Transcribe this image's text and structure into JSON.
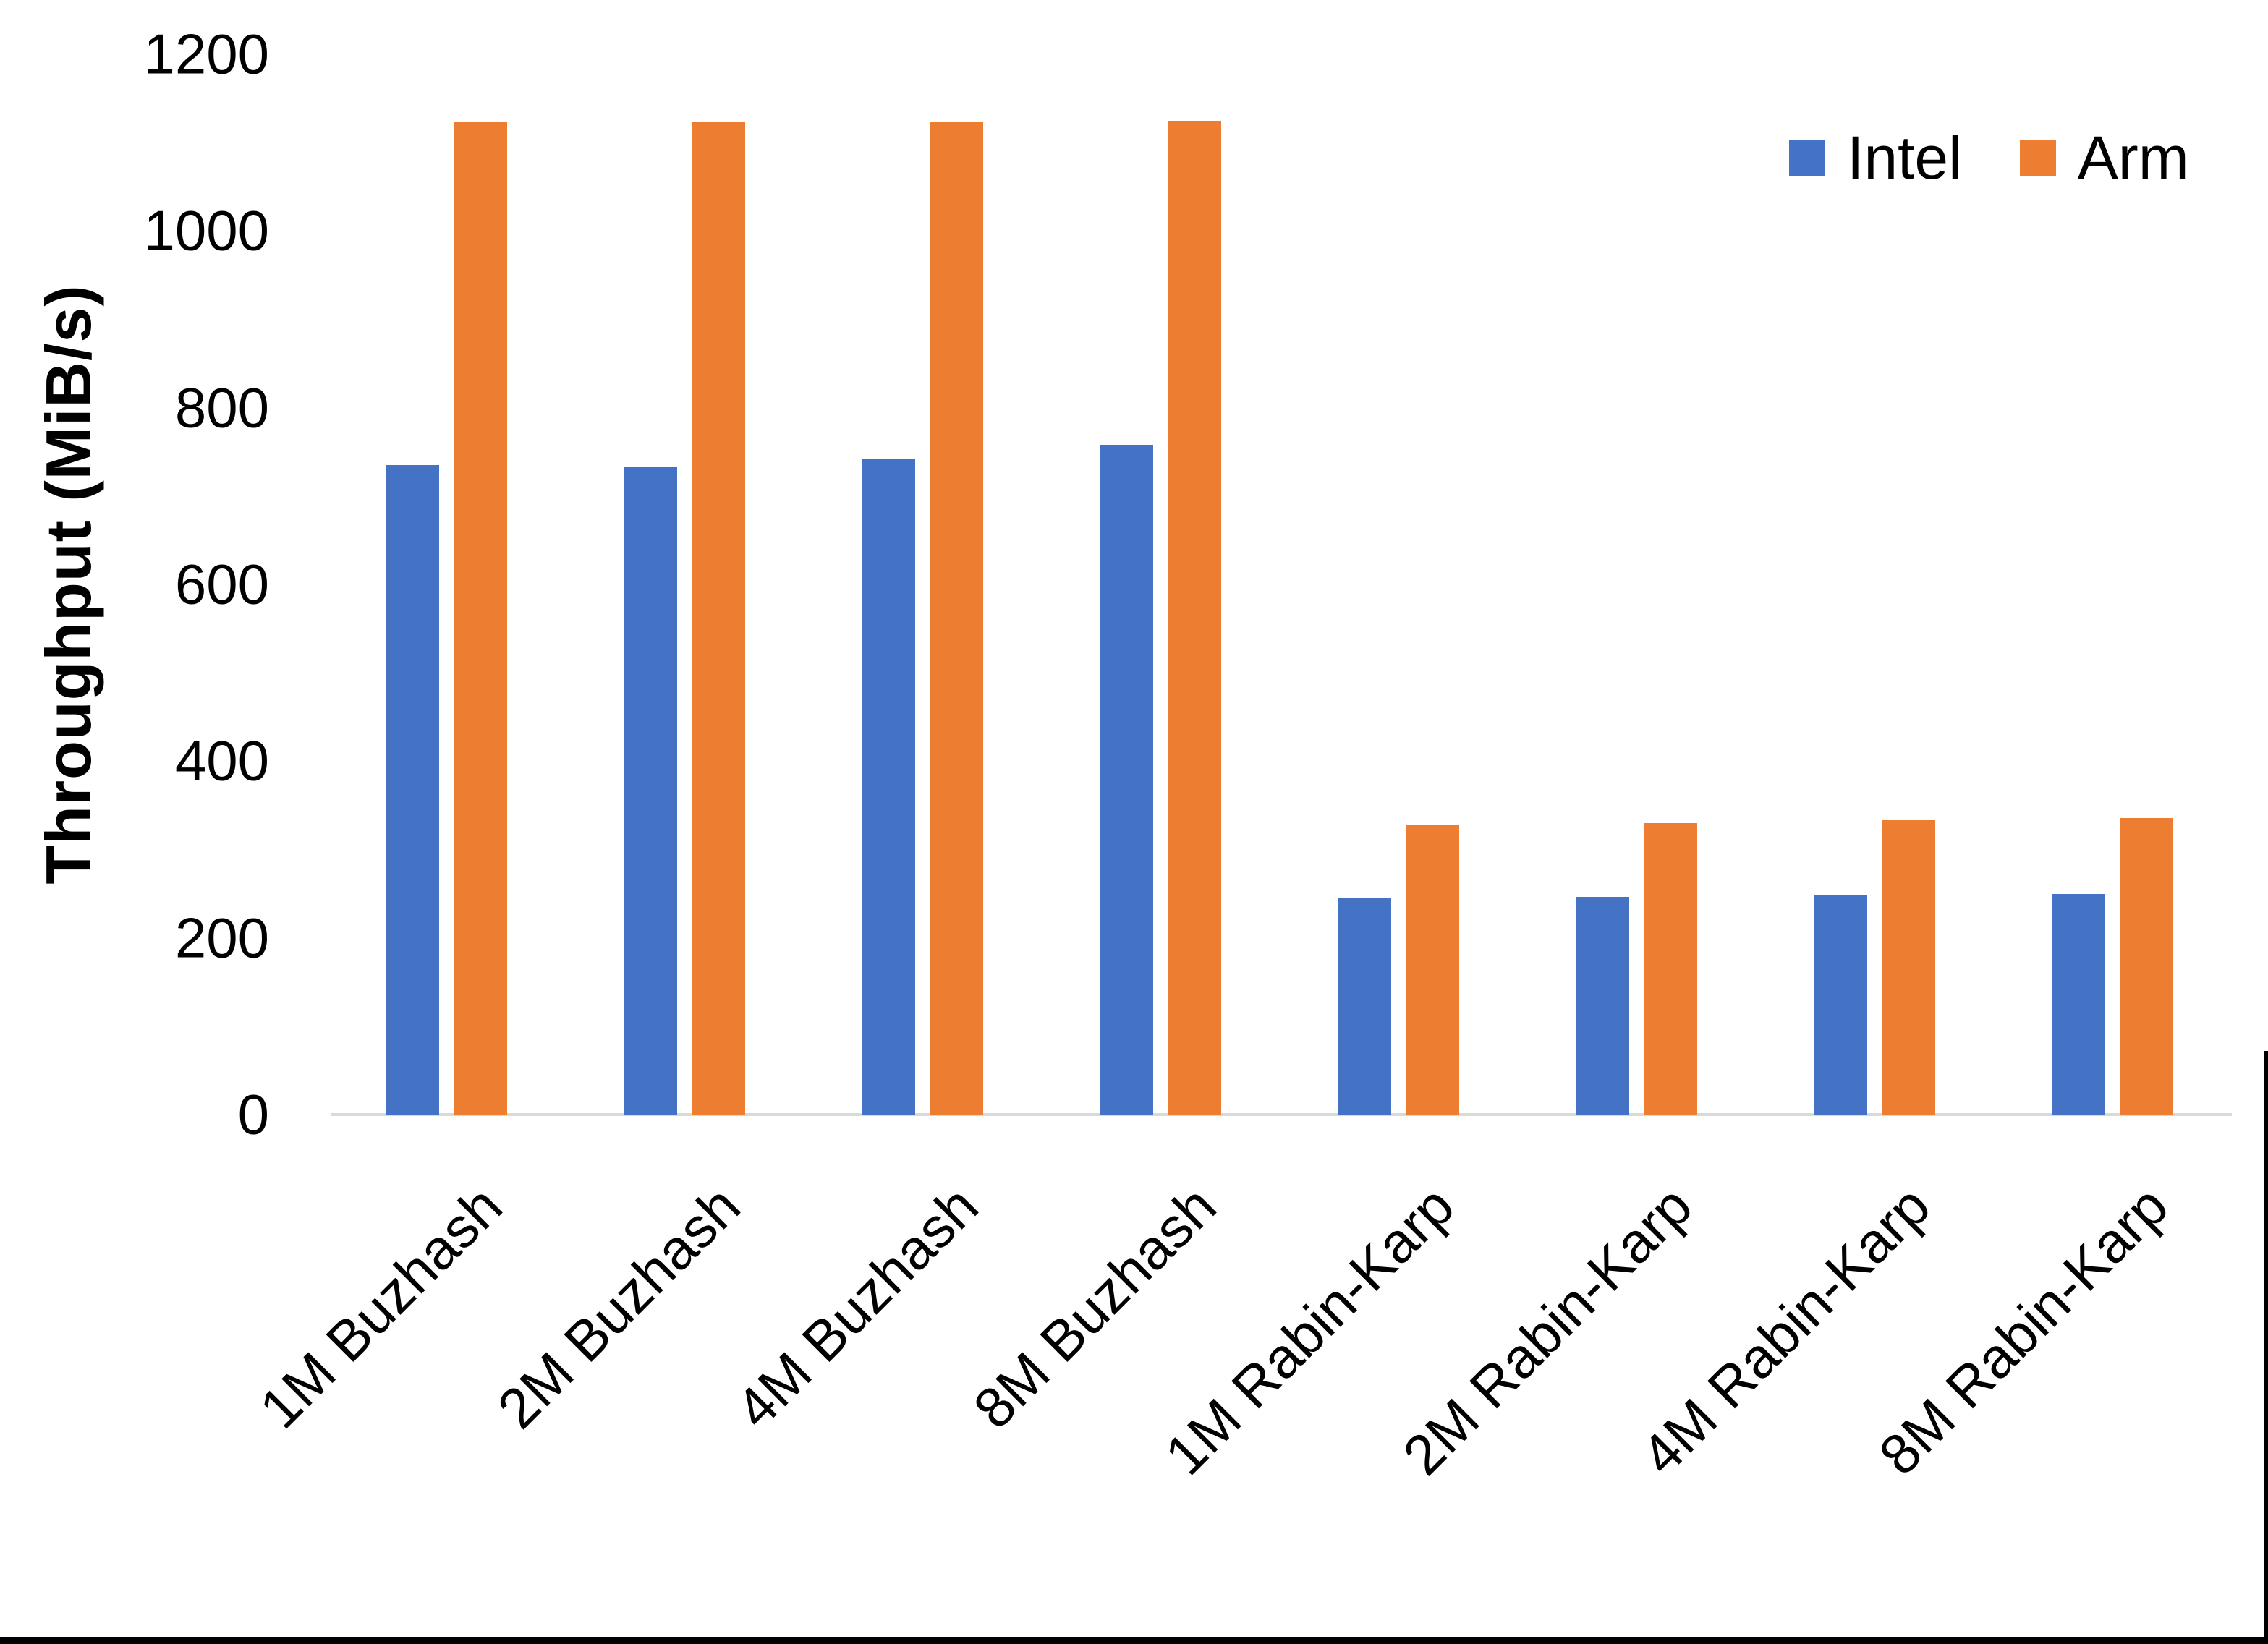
{
  "chart_data": {
    "type": "bar",
    "title": "",
    "categories": [
      "1M Buzhash",
      "2M Buzhash",
      "4M Buzhash",
      "8M Buzhash",
      "1M Rabin-Karp",
      "2M Rabin-Karp",
      "4M Rabin-Karp",
      "8M Rabin-Karp"
    ],
    "series": [
      {
        "name": "Intel",
        "color": "#4472C4",
        "values": [
          735,
          733,
          742,
          758,
          245,
          246,
          249,
          250
        ]
      },
      {
        "name": "Arm",
        "color": "#ED7D31",
        "values": [
          1124,
          1124,
          1124,
          1125,
          328,
          330,
          333,
          336
        ]
      }
    ],
    "xlabel": "",
    "ylabel": "Throughput (MiB/s)",
    "ylim": [
      0,
      1200
    ],
    "yticks": [
      0,
      200,
      400,
      600,
      800,
      1000,
      1200
    ],
    "grid": false,
    "legend_position": "top-right",
    "unit": "MiB/s"
  },
  "colors": {
    "axis_line": "#D9D9D9",
    "text": "#000000",
    "background": "#FFFFFF",
    "page_border": "#000000"
  }
}
